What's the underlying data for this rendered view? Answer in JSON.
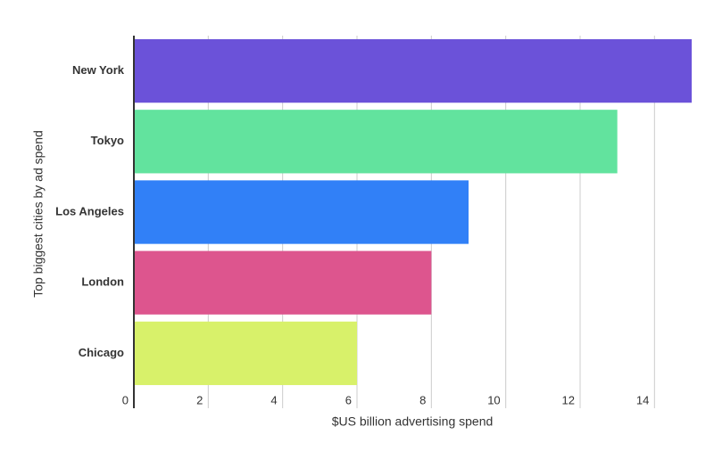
{
  "chart_data": {
    "type": "barh",
    "x_label": "$US billion advertising spend",
    "y_label": "Top biggest cities by ad spend",
    "categories": [
      "New York",
      "Tokyo",
      "Los Angeles",
      "London",
      "Chicago"
    ],
    "values": [
      15.0,
      13.0,
      9.0,
      8.0,
      6.0
    ],
    "colors": [
      "#6b52d9",
      "#62e39e",
      "#3180f7",
      "#dd558e",
      "#d8f16a"
    ],
    "xlim": [
      0,
      15
    ],
    "xticks": [
      0,
      2,
      4,
      6,
      8,
      10,
      12,
      14
    ],
    "grid": true
  }
}
